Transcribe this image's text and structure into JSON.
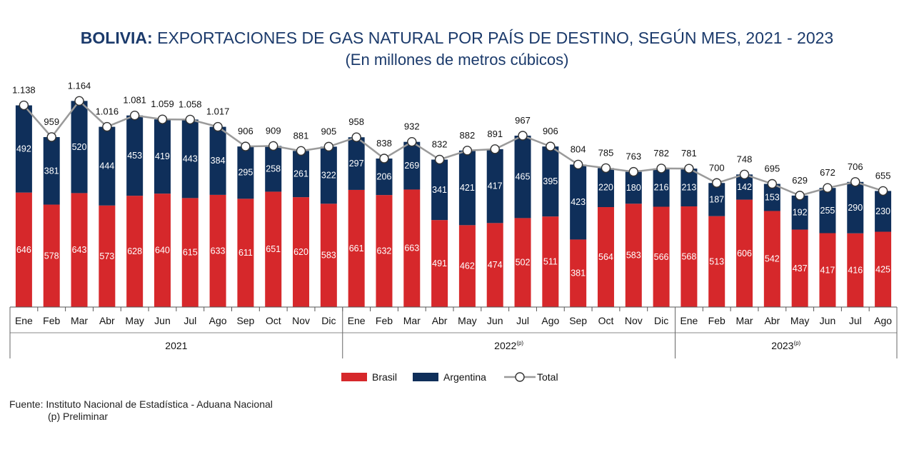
{
  "title_bold": "BOLIVIA:",
  "title_rest": " EXPORTACIONES DE GAS NATURAL POR PAÍS DE DESTINO, SEGÚN MES, 2021 - 2023",
  "subtitle": "(En millones de metros cúbicos)",
  "source_line1": "Fuente: Instituto Nacional de Estadística - Aduana Nacional",
  "source_line2": "(p) Preliminar",
  "colors": {
    "brasil": "#d6282b",
    "argentina": "#0f2f5a",
    "total_line": "#9a9a9a"
  },
  "chart_data": {
    "type": "bar",
    "stacked": true,
    "categories": [
      "Ene",
      "Feb",
      "Mar",
      "Abr",
      "May",
      "Jun",
      "Jul",
      "Ago",
      "Sep",
      "Oct",
      "Nov",
      "Dic",
      "Ene",
      "Feb",
      "Mar",
      "Abr",
      "May",
      "Jun",
      "Jul",
      "Ago",
      "Sep",
      "Oct",
      "Nov",
      "Dic",
      "Ene",
      "Feb",
      "Mar",
      "Abr",
      "May",
      "Jun",
      "Jul",
      "Ago"
    ],
    "groups": [
      {
        "label": "2021",
        "sup": "",
        "count": 12
      },
      {
        "label": "2022",
        "sup": "(p)",
        "count": 12
      },
      {
        "label": "2023",
        "sup": "(p)",
        "count": 8
      }
    ],
    "series": [
      {
        "name": "Brasil",
        "values": [
          646,
          578,
          643,
          573,
          628,
          640,
          615,
          633,
          611,
          651,
          620,
          583,
          661,
          632,
          663,
          491,
          462,
          474,
          502,
          511,
          381,
          564,
          583,
          566,
          568,
          513,
          606,
          542,
          437,
          417,
          416,
          425
        ]
      },
      {
        "name": "Argentina",
        "values": [
          492,
          381,
          520,
          444,
          453,
          419,
          443,
          384,
          295,
          258,
          261,
          322,
          297,
          206,
          269,
          341,
          421,
          417,
          465,
          395,
          423,
          220,
          180,
          216,
          213,
          187,
          142,
          153,
          192,
          255,
          290,
          230
        ]
      }
    ],
    "total": {
      "name": "Total",
      "labels": [
        "1.138",
        "959",
        "1.164",
        "1.016",
        "1.081",
        "1.059",
        "1.058",
        "1.017",
        "906",
        "909",
        "881",
        "905",
        "958",
        "838",
        "932",
        "832",
        "882",
        "891",
        "967",
        "906",
        "804",
        "785",
        "763",
        "782",
        "781",
        "700",
        "748",
        "695",
        "629",
        "672",
        "706",
        "655"
      ]
    },
    "legend_position": "bottom-center"
  }
}
